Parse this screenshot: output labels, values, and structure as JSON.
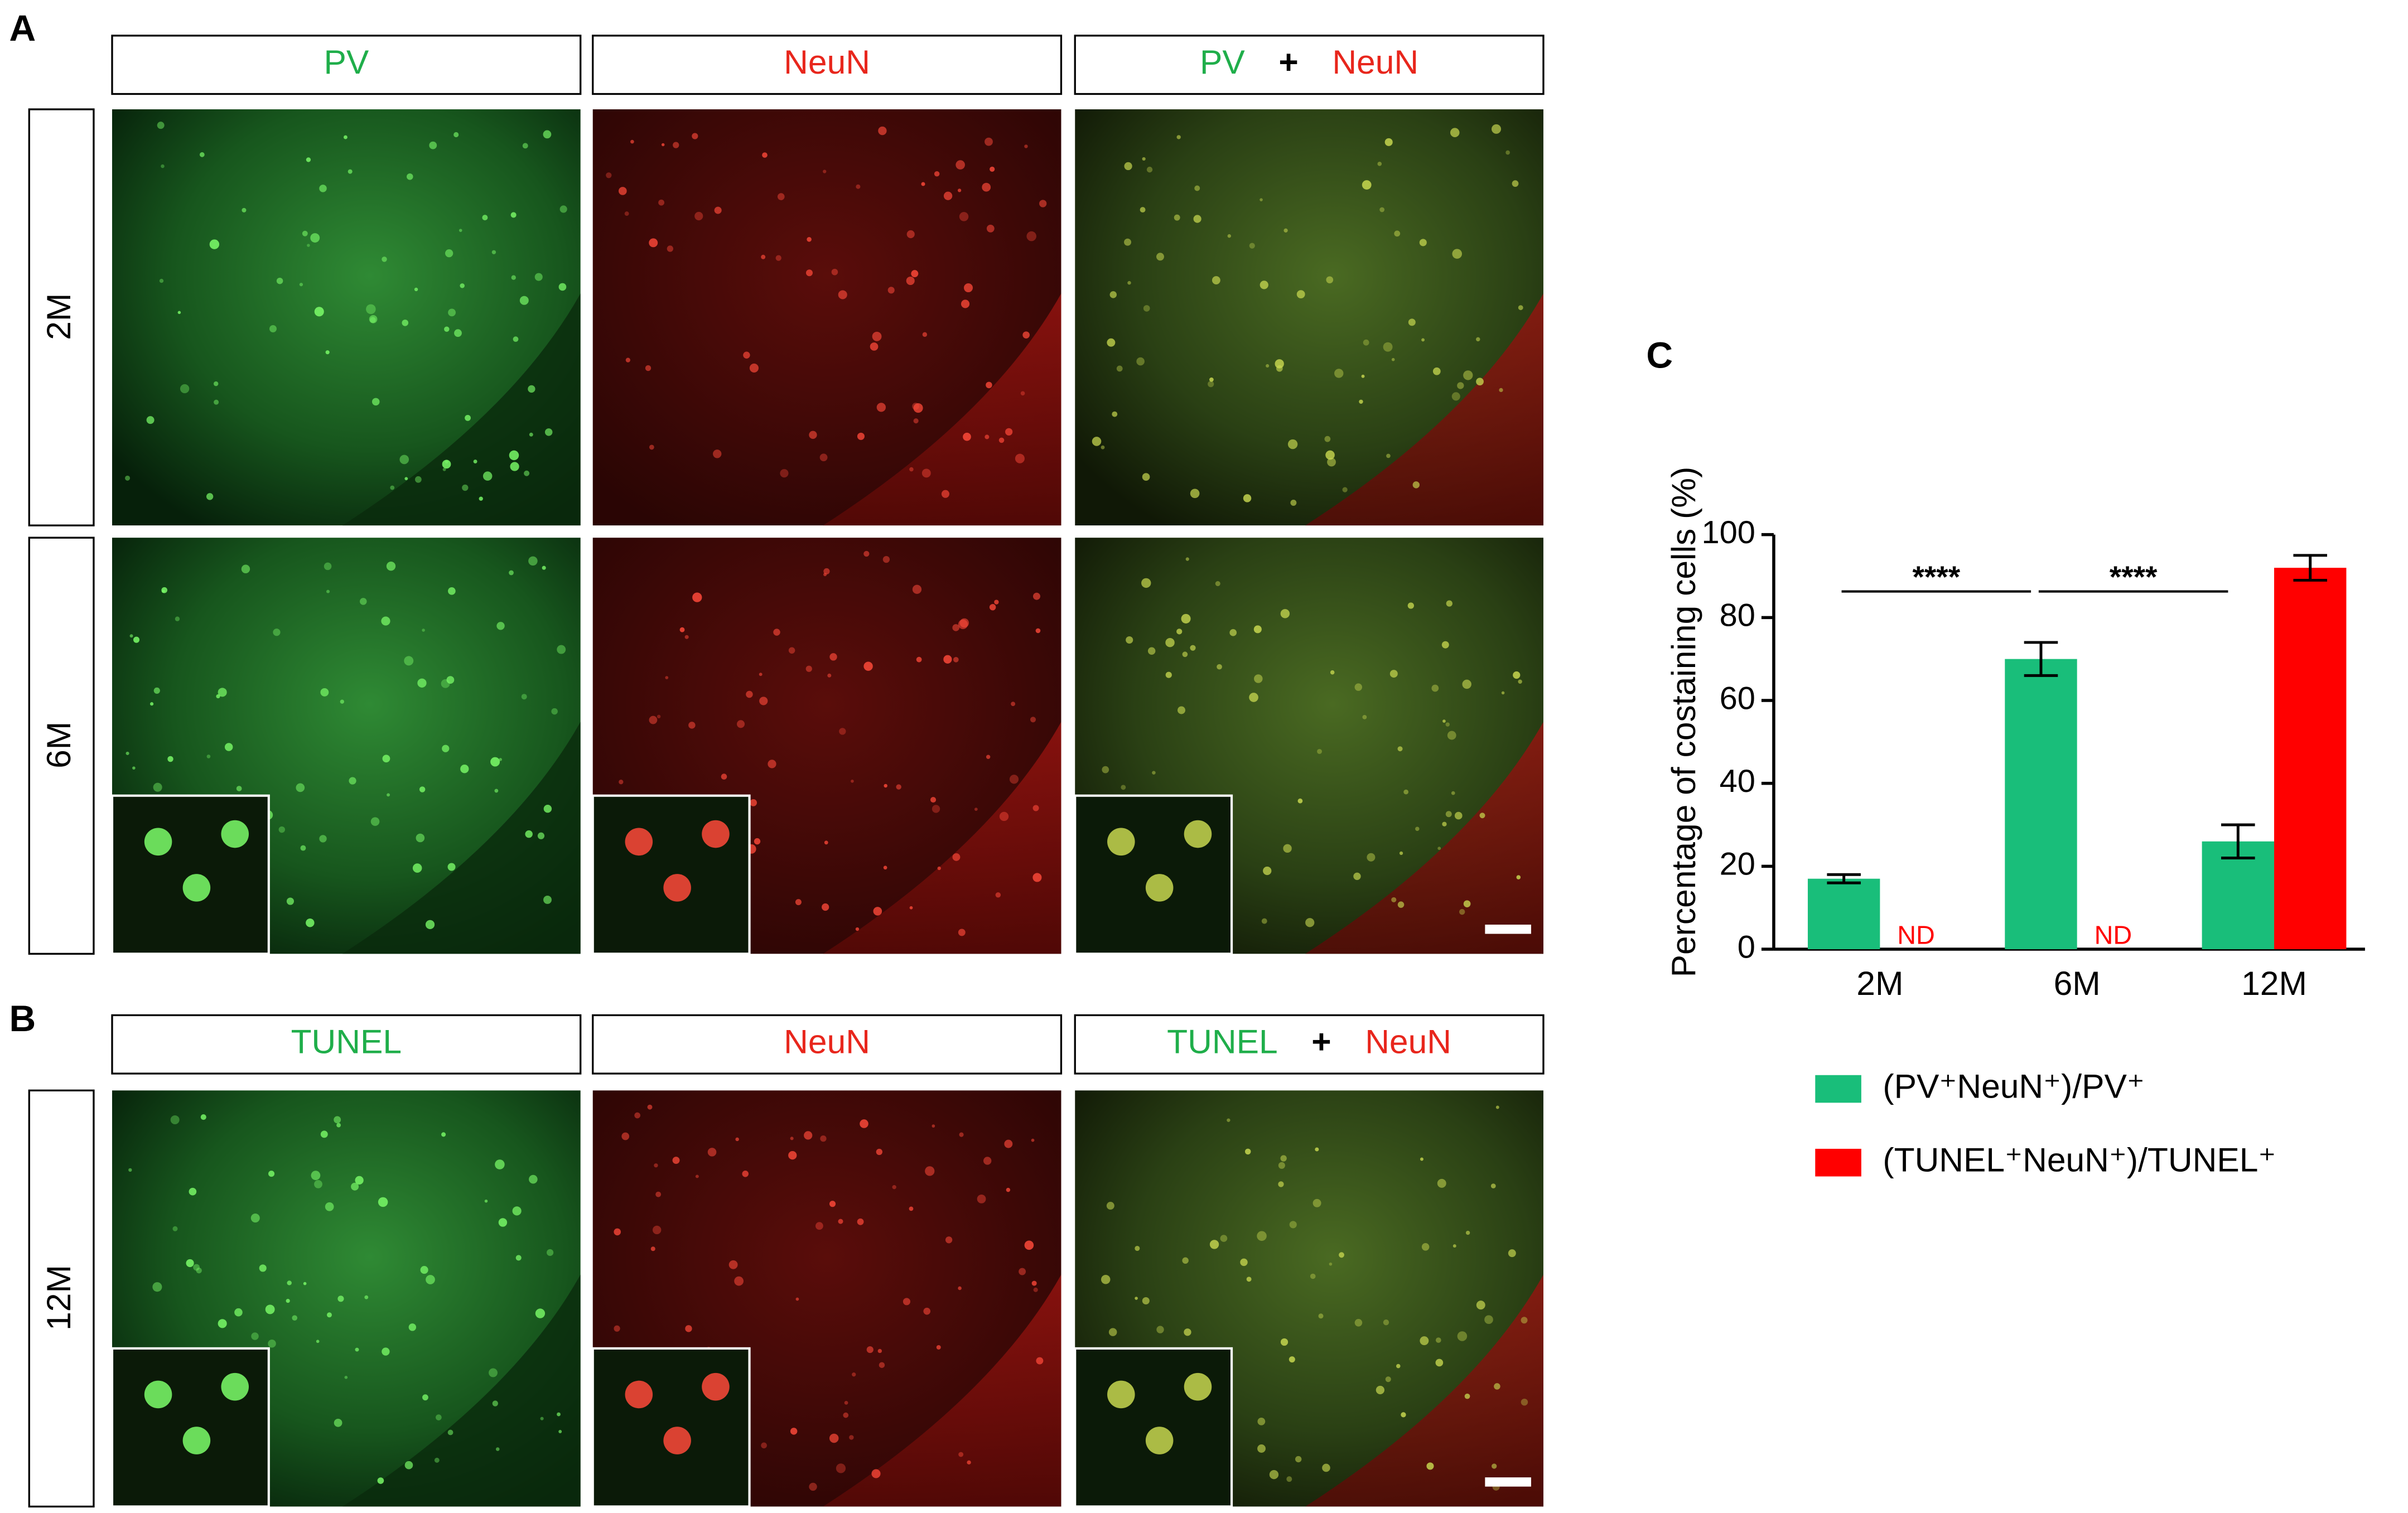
{
  "panel_a": {
    "label": "A",
    "headers": [
      [
        "PV"
      ],
      [
        "NeuN"
      ],
      [
        "PV",
        "+",
        "NeuN"
      ]
    ],
    "rows": [
      "2M",
      "6M"
    ]
  },
  "panel_b": {
    "label": "B",
    "headers": [
      [
        "TUNEL"
      ],
      [
        "NeuN"
      ],
      [
        "TUNEL",
        "+",
        "NeuN"
      ]
    ],
    "rows": [
      "12M"
    ]
  },
  "chart_data": {
    "type": "bar",
    "label": "C",
    "ylabel": "Percentage of costaining cells (%)",
    "categories": [
      "2M",
      "6M",
      "12M"
    ],
    "series": [
      {
        "name": "(PV⁺NeuN⁺)/PV⁺",
        "color": "#19be7a",
        "values": [
          17,
          70,
          26
        ],
        "errors": [
          1,
          4,
          4
        ]
      },
      {
        "name": "(TUNEL⁺NeuN⁺)/TUNEL⁺",
        "color": "#ff0000",
        "values": [
          null,
          null,
          92
        ],
        "errors": [
          null,
          null,
          3
        ],
        "value_labels": [
          "ND",
          "ND",
          null
        ]
      }
    ],
    "annotations": [
      "****",
      "****"
    ],
    "ylim": [
      0,
      100
    ],
    "yticks": [
      0,
      20,
      40,
      60,
      80,
      100
    ],
    "grid": false
  }
}
